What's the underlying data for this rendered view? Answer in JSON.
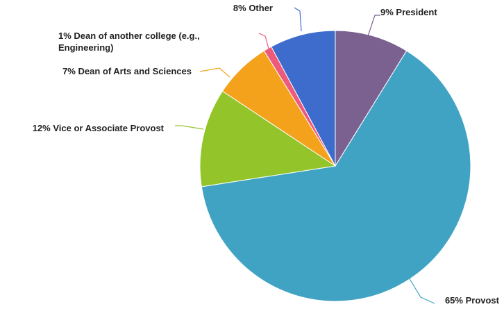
{
  "chart_data": {
    "type": "pie",
    "start": "12 o'clock, clockwise",
    "slices": [
      {
        "label": "President",
        "value": 9,
        "display": "9% President",
        "color": "#7b6190"
      },
      {
        "label": "Provost",
        "value": 65,
        "display": "65% Provost",
        "color": "#41a3c4"
      },
      {
        "label": "Vice or Associate Provost",
        "value": 12,
        "display": "12% Vice or Associate Provost",
        "color": "#93c52a"
      },
      {
        "label": "Dean of Arts and Sciences",
        "value": 7,
        "display": "7% Dean of Arts and Sciences",
        "color": "#f4a21c"
      },
      {
        "label": "Dean of another college (e.g., Engineering)",
        "value": 1,
        "display": [
          "1% Dean of another college (e.g.,",
          "Engineering)"
        ],
        "color": "#ee5a7c"
      },
      {
        "label": "Other",
        "value": 8,
        "display": "8% Other",
        "color": "#3e6ccd"
      }
    ]
  }
}
